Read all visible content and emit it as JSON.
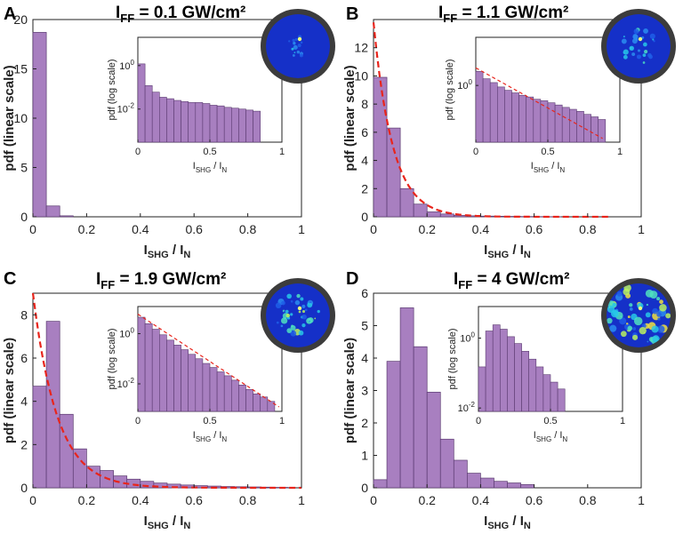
{
  "chart_data": [
    {
      "panel": "A",
      "type": "bar",
      "title_main": "I",
      "title_sub": "FF",
      "title_rest": " = 0.1 GW/cm²",
      "xlabel": "I_SHG / I_N",
      "ylabel": "pdf (linear scale)",
      "xlim": [
        0,
        1
      ],
      "ylim": [
        0,
        20
      ],
      "yticks": [
        0,
        5,
        10,
        15,
        20
      ],
      "xticks": [
        0,
        0.2,
        0.4,
        0.6,
        0.8,
        1
      ],
      "bin_width": 0.05,
      "values": [
        18.7,
        1.1,
        0.1
      ],
      "fit": null,
      "inset": {
        "type": "bar",
        "ylabel": "pdf (log scale)",
        "xlabel": "I_SHG / I_N",
        "xlim": [
          0,
          1
        ],
        "ylim_log": [
          0.0003,
          20
        ],
        "yticks": [
          {
            "v": 1,
            "label": "10",
            "exp": "0"
          },
          {
            "v": 0.01,
            "label": "10",
            "exp": "-2"
          }
        ],
        "xticks": [
          0,
          0.5,
          1
        ],
        "bin_width": 0.05,
        "values": [
          1.2,
          0.12,
          0.06,
          0.035,
          0.03,
          0.025,
          0.022,
          0.02,
          0.02,
          0.018,
          0.015,
          0.014,
          0.012,
          0.011,
          0.01,
          0.009,
          0.008
        ],
        "fit": null
      },
      "speckle_intensity": 0.1
    },
    {
      "panel": "B",
      "type": "bar",
      "title_main": "I",
      "title_sub": "FF",
      "title_rest": " = 1.1 GW/cm²",
      "xlabel": "I_SHG / I_N",
      "ylabel": "pdf (linear scale)",
      "xlim": [
        0,
        1
      ],
      "ylim": [
        0,
        14
      ],
      "yticks": [
        0,
        2,
        4,
        6,
        8,
        10,
        12
      ],
      "xticks": [
        0,
        0.2,
        0.4,
        0.6,
        0.8,
        1
      ],
      "bin_width": 0.05,
      "values": [
        9.9,
        6.3,
        2.0,
        0.9,
        0.35,
        0.2,
        0.1,
        0.07,
        0.05,
        0.04,
        0.03,
        0.02,
        0.015,
        0.01
      ],
      "fit": {
        "A": 13.8,
        "k": 14.0,
        "x_max": 0.88
      },
      "inset": {
        "type": "bar",
        "ylabel": "pdf (log scale)",
        "xlabel": "I_SHG / I_N",
        "xlim": [
          0,
          1
        ],
        "ylim_log": [
          0.15,
          5
        ],
        "yticks": [
          {
            "v": 1,
            "label": "10",
            "exp": "0"
          }
        ],
        "xticks": [
          0,
          0.5,
          1
        ],
        "bin_width": 0.05,
        "values": [
          1.6,
          1.25,
          1.1,
          0.95,
          0.85,
          0.78,
          0.72,
          0.68,
          0.63,
          0.6,
          0.56,
          0.52,
          0.48,
          0.45,
          0.42,
          0.38,
          0.35,
          0.32
        ],
        "fit": {
          "y0": 1.8,
          "y1": 0.17,
          "x_max": 0.88
        }
      },
      "speckle_intensity": 0.35
    },
    {
      "panel": "C",
      "type": "bar",
      "title_main": "I",
      "title_sub": "FF",
      "title_rest": " = 1.9 GW/cm²",
      "xlabel": "I_SHG / I_N",
      "ylabel": "pdf (linear scale)",
      "xlim": [
        0,
        1
      ],
      "ylim": [
        0,
        9
      ],
      "yticks": [
        0,
        2,
        4,
        6,
        8
      ],
      "xticks": [
        0,
        0.2,
        0.4,
        0.6,
        0.8,
        1
      ],
      "bin_width": 0.05,
      "values": [
        4.7,
        7.7,
        3.4,
        1.8,
        1.0,
        0.8,
        0.55,
        0.4,
        0.3,
        0.22,
        0.17,
        0.13,
        0.1,
        0.08,
        0.06,
        0.05,
        0.04,
        0.03,
        0.02
      ],
      "fit": {
        "A": 9.0,
        "k": 11.0,
        "x_max": 1.0
      },
      "inset": {
        "type": "bar",
        "ylabel": "pdf (log scale)",
        "xlabel": "I_SHG / I_N",
        "xlim": [
          0,
          1
        ],
        "ylim_log": [
          0.0008,
          12
        ],
        "yticks": [
          {
            "v": 1,
            "label": "10",
            "exp": "0"
          },
          {
            "v": 0.01,
            "label": "10",
            "exp": "-2"
          }
        ],
        "xticks": [
          0,
          0.5,
          1
        ],
        "bin_width": 0.05,
        "values": [
          4.5,
          2.5,
          1.5,
          0.9,
          0.55,
          0.35,
          0.23,
          0.15,
          0.1,
          0.065,
          0.045,
          0.03,
          0.021,
          0.014,
          0.009,
          0.006,
          0.004,
          0.003,
          0.002
        ],
        "fit": {
          "y0": 6.0,
          "y1": 0.0012,
          "x_max": 0.98
        }
      },
      "speckle_intensity": 0.6
    },
    {
      "panel": "D",
      "type": "bar",
      "title_main": "I",
      "title_sub": "FF",
      "title_rest": " = 4 GW/cm²",
      "xlabel": "I_SHG / I_N",
      "ylabel": "pdf (linear scale)",
      "xlim": [
        0,
        1
      ],
      "ylim": [
        0,
        6
      ],
      "yticks": [
        0,
        1,
        2,
        3,
        4,
        5,
        6
      ],
      "xticks": [
        0,
        0.2,
        0.4,
        0.6,
        0.8,
        1
      ],
      "bin_width": 0.05,
      "values": [
        0.25,
        3.9,
        5.55,
        4.35,
        2.95,
        1.5,
        0.85,
        0.45,
        0.3,
        0.2,
        0.15,
        0.1
      ],
      "fit": null,
      "inset": {
        "type": "bar",
        "ylabel": "pdf (log scale)",
        "xlabel": "I_SHG / I_N",
        "xlim": [
          0,
          1
        ],
        "ylim_log": [
          0.008,
          8
        ],
        "yticks": [
          {
            "v": 1,
            "label": "10",
            "exp": "0"
          },
          {
            "v": 0.01,
            "label": "10",
            "exp": "-2"
          }
        ],
        "xticks": [
          0,
          0.5,
          1
        ],
        "bin_width": 0.05,
        "values": [
          0.15,
          1.6,
          2.4,
          1.8,
          1.1,
          0.7,
          0.42,
          0.25,
          0.15,
          0.09,
          0.055,
          0.035
        ],
        "fit": null
      },
      "speckle_intensity": 1.0
    }
  ],
  "style": {
    "bar_fill": "#a87fc0",
    "bar_stroke": "#5a3a70",
    "fit_color": "#e8251c",
    "axis_color": "#222222"
  }
}
